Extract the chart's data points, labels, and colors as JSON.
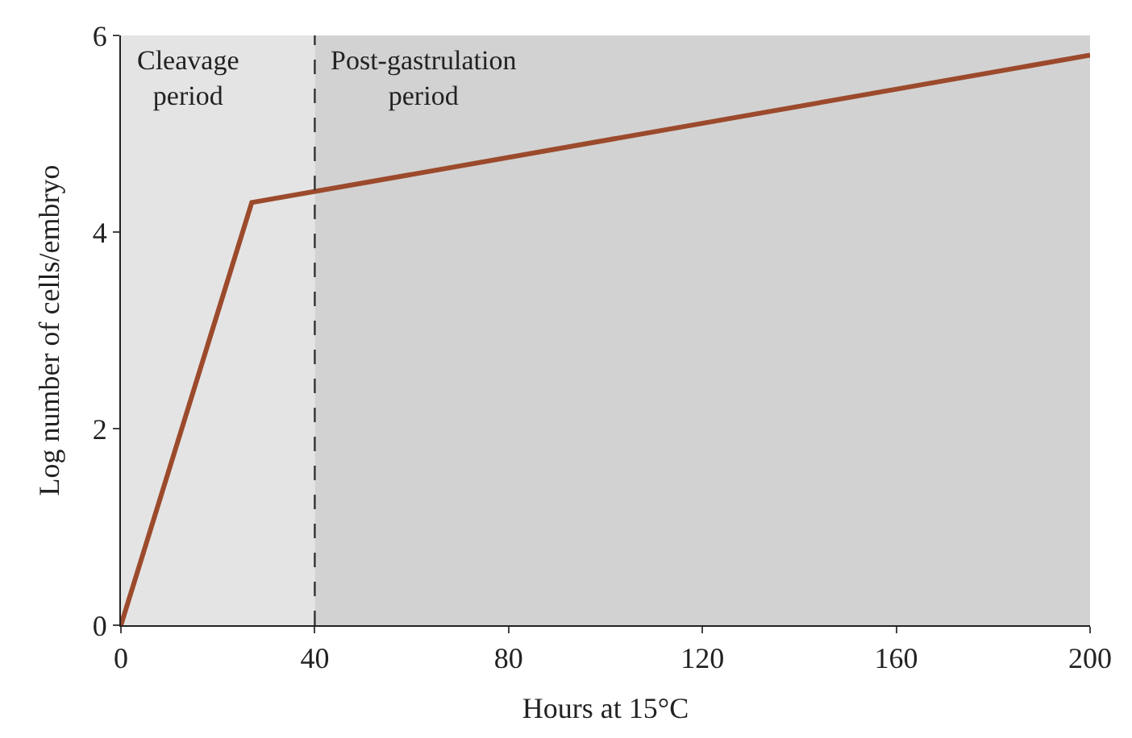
{
  "chart_data": {
    "type": "line",
    "xlabel": "Hours at 15°C",
    "ylabel": "Log number of cells/embryo",
    "x": [
      0,
      27,
      200
    ],
    "series": [
      {
        "color": "#9c4a2c",
        "values": [
          0,
          4.3,
          5.8
        ]
      }
    ],
    "xlim": [
      0,
      200
    ],
    "xticks": [
      0,
      40,
      80,
      120,
      160,
      200
    ],
    "ylim": [
      0,
      6
    ],
    "yticks": [
      0,
      2,
      4,
      6
    ],
    "bands": [
      {
        "axis": "x",
        "from": 0,
        "to": 40,
        "label": "Cleavage\nperiod",
        "color": "#e4e4e4"
      },
      {
        "axis": "x",
        "from": 40,
        "to": 200,
        "label": "Post-gastrulation\nperiod",
        "color": "#d2d2d2"
      }
    ],
    "ref_lines": [
      {
        "axis": "x",
        "value": 40,
        "line_style": "dashed",
        "color": "#333333"
      }
    ],
    "grid": false,
    "marker": "none",
    "line_style": "solid"
  }
}
